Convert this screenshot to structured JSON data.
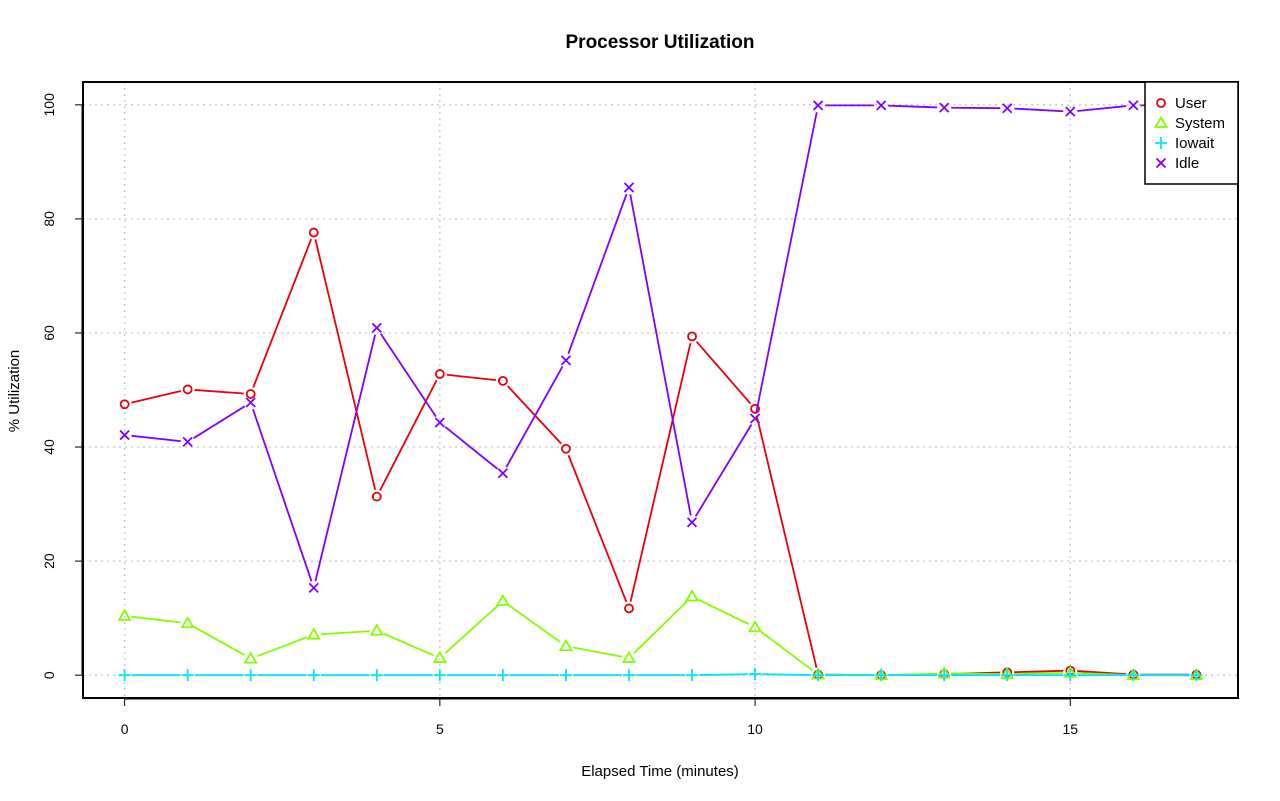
{
  "chart_data": {
    "type": "line",
    "title": "Processor Utilization",
    "xlabel": "Elapsed Time (minutes)",
    "ylabel": "% Utilization",
    "xlim": [
      -0.66,
      17.66
    ],
    "ylim": [
      -4,
      104
    ],
    "x_ticks": [
      0,
      5,
      10,
      15
    ],
    "y_ticks": [
      0,
      20,
      40,
      60,
      80,
      100
    ],
    "grid": true,
    "legend_position": "top-right",
    "x": [
      0,
      1,
      2,
      3,
      4,
      5,
      6,
      7,
      8,
      9,
      10,
      11,
      12,
      13,
      14,
      15,
      16,
      17
    ],
    "series": [
      {
        "name": "User",
        "color": "#e8000b",
        "marker": "circle",
        "values": [
          47.5,
          50.1,
          49.3,
          77.6,
          31.3,
          52.8,
          51.6,
          39.7,
          11.7,
          59.4,
          46.7,
          0.1,
          0.0,
          0.2,
          0.5,
          0.8,
          0.1,
          0.1
        ]
      },
      {
        "name": "System",
        "color": "#80ff00",
        "marker": "triangle",
        "values": [
          10.4,
          9.1,
          2.9,
          7.1,
          7.8,
          3.0,
          13.0,
          5.1,
          3.0,
          13.8,
          8.4,
          0.1,
          0.0,
          0.3,
          0.2,
          0.4,
          0.0,
          0.0
        ]
      },
      {
        "name": "Iowait",
        "color": "#00e5ff",
        "marker": "plus",
        "values": [
          0.0,
          0.0,
          0.0,
          0.0,
          0.0,
          0.0,
          0.0,
          0.0,
          0.0,
          0.0,
          0.2,
          0.0,
          0.0,
          0.0,
          0.0,
          0.0,
          0.0,
          0.0
        ]
      },
      {
        "name": "Idle",
        "color": "#8000ff",
        "marker": "cross",
        "values": [
          42.1,
          40.9,
          47.8,
          15.3,
          60.9,
          44.3,
          35.4,
          55.2,
          85.5,
          26.8,
          45.0,
          99.9,
          99.9,
          99.5,
          99.4,
          98.8,
          99.9,
          99.9
        ]
      }
    ]
  }
}
